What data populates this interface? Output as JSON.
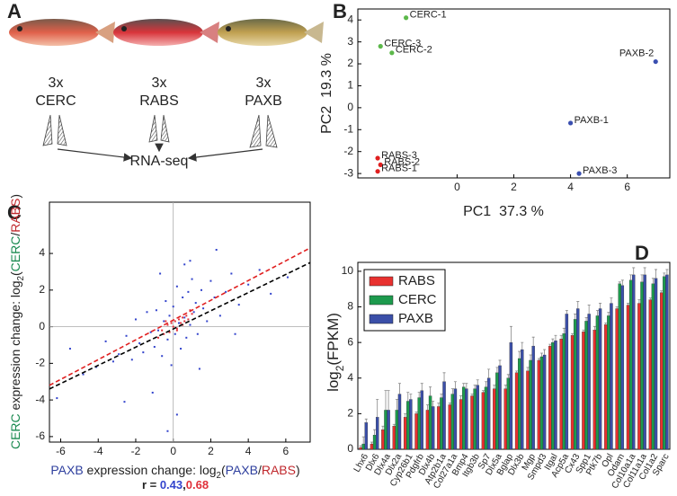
{
  "panel_a": {
    "letter": "A",
    "groups": [
      {
        "count": "3x",
        "name": "CERC",
        "color": "#1a8a50"
      },
      {
        "count": "3x",
        "name": "RABS",
        "color": "#c0282d"
      },
      {
        "count": "3x",
        "name": "PAXB",
        "color": "#2e3f9e"
      }
    ],
    "output": "RNA-seq"
  },
  "chart_data": [
    {
      "type": "scatter",
      "panel": "B",
      "xlabel": "PC1  37.3 %",
      "ylabel": "PC2  19.3 %",
      "xlim": [
        -3.5,
        7.5
      ],
      "ylim": [
        -3.2,
        4.5
      ],
      "xticks": [
        0,
        2,
        4,
        6
      ],
      "yticks": [
        -3,
        -2,
        -1,
        0,
        1,
        2,
        3,
        4
      ],
      "points": [
        {
          "label": "CERC-1",
          "x": -1.8,
          "y": 4.1,
          "color": "#5cb84a"
        },
        {
          "label": "CERC-3",
          "x": -2.7,
          "y": 2.8,
          "color": "#5cb84a"
        },
        {
          "label": "CERC-2",
          "x": -2.3,
          "y": 2.5,
          "color": "#5cb84a"
        },
        {
          "label": "PAXB-2",
          "x": 7.0,
          "y": 2.1,
          "color": "#3a4fb0"
        },
        {
          "label": "PAXB-1",
          "x": 4.0,
          "y": -0.7,
          "color": "#3a4fb0"
        },
        {
          "label": "PAXB-3",
          "x": 4.3,
          "y": -3.0,
          "color": "#3a4fb0"
        },
        {
          "label": "RABS-3",
          "x": -2.8,
          "y": -2.3,
          "color": "#e02020"
        },
        {
          "label": "RABS-2",
          "x": -2.7,
          "y": -2.6,
          "color": "#e02020"
        },
        {
          "label": "RABS-1",
          "x": -2.8,
          "y": -2.9,
          "color": "#e02020"
        }
      ]
    },
    {
      "type": "scatter-fit",
      "panel": "C",
      "xlim": [
        -6.6,
        7.3
      ],
      "ylim": [
        -6.3,
        6.8
      ],
      "xticks": [
        -6,
        -4,
        -2,
        0,
        2,
        4,
        6
      ],
      "yticks": [
        -6,
        -4,
        -2,
        0,
        2,
        4
      ],
      "series": [
        {
          "color": "#3344cc",
          "x": [
            -6.2,
            -5.5,
            -4.8,
            -4.1,
            -3.6,
            -3.2,
            -2.9,
            -2.5,
            -2.2,
            -2.0,
            -1.8,
            -1.6,
            -1.4,
            -1.2,
            -1.0,
            -0.9,
            -0.8,
            -0.6,
            -0.5,
            -0.4,
            -0.3,
            -0.2,
            -0.1,
            0.0,
            0.1,
            0.2,
            0.3,
            0.4,
            0.5,
            0.6,
            0.7,
            0.8,
            0.9,
            1.0,
            1.1,
            1.2,
            1.3,
            1.5,
            1.6,
            1.8,
            2.0,
            2.2,
            2.5,
            2.8,
            3.1,
            3.5,
            4.0,
            4.6,
            5.2,
            6.1,
            -1.1,
            -0.7,
            0.2,
            0.9,
            1.4,
            -2.6,
            2.3,
            -0.3,
            0.6,
            3.3
          ],
          "y": [
            -3.9,
            -1.2,
            -2.6,
            -2.2,
            -0.8,
            -1.9,
            -1.5,
            -0.5,
            -1.8,
            0.4,
            -0.9,
            -1.4,
            0.8,
            -0.3,
            -1.1,
            0.9,
            -0.2,
            -1.6,
            0.3,
            1.4,
            -0.7,
            0.6,
            -2.1,
            1.1,
            -0.4,
            2.2,
            0.2,
            -1.2,
            1.6,
            0.5,
            -0.6,
            1.9,
            0.1,
            2.6,
            0.8,
            1.3,
            -0.4,
            2.0,
            1.0,
            0.3,
            2.5,
            1.6,
            0.6,
            1.9,
            2.9,
            1.2,
            2.3,
            3.1,
            1.8,
            2.7,
            -3.6,
            2.9,
            -4.8,
            3.6,
            -2.3,
            -4.1,
            4.2,
            -5.7,
            3.4,
            -0.4
          ]
        },
        {
          "color": "#e0303a",
          "x": [
            -0.8,
            -0.6,
            -0.5,
            -0.3,
            -0.2,
            -0.1,
            0.0,
            0.1,
            0.2,
            0.3,
            0.4,
            0.5,
            0.6,
            0.7,
            0.8,
            1.0,
            -0.4,
            0.2,
            0.5,
            0.9
          ],
          "y": [
            -0.6,
            -0.2,
            -0.4,
            0.1,
            -0.3,
            0.2,
            0.0,
            0.3,
            -0.1,
            0.4,
            0.2,
            0.5,
            0.3,
            0.6,
            0.4,
            0.7,
            0.3,
            -0.2,
            0.1,
            0.9
          ]
        }
      ],
      "fits": [
        {
          "color": "#e02020",
          "x": [
            -6.6,
            7.3
          ],
          "y": [
            -3.2,
            4.3
          ]
        },
        {
          "color": "#000000",
          "x": [
            -6.6,
            7.3
          ],
          "y": [
            -3.4,
            3.5
          ]
        }
      ],
      "xlabel": {
        "parts": [
          {
            "text": "PAXB",
            "color": "#2e3f9e"
          },
          {
            "text": " expression change: log"
          },
          {
            "text": "2",
            "sub": true
          },
          {
            "text": "("
          },
          {
            "text": "PAXB",
            "color": "#2e3f9e"
          },
          {
            "text": "/"
          },
          {
            "text": "RABS",
            "color": "#c0282d"
          },
          {
            "text": ")"
          }
        ]
      },
      "ylabel": {
        "parts": [
          {
            "text": "CERC",
            "color": "#1a8a50"
          },
          {
            "text": " expression change: log"
          },
          {
            "text": "2",
            "sub": true
          },
          {
            "text": "("
          },
          {
            "text": "CERC",
            "color": "#1a8a50"
          },
          {
            "text": "/"
          },
          {
            "text": "RABS",
            "color": "#c0282d"
          },
          {
            "text": ")"
          }
        ]
      },
      "annotation": {
        "parts": [
          {
            "text": "r = "
          },
          {
            "text": "0.43",
            "color": "#3344cc"
          },
          {
            "text": ","
          },
          {
            "text": "0.68",
            "color": "#e0303a"
          }
        ]
      }
    },
    {
      "type": "bar",
      "panel": "D",
      "ylim": [
        0,
        10.5
      ],
      "yticks": [
        0,
        2,
        4,
        6,
        8,
        10
      ],
      "ylabel": {
        "parts": [
          {
            "text": "log"
          },
          {
            "text": "2",
            "sub": true
          },
          {
            "text": "(FPKM)"
          }
        ]
      },
      "categories": [
        "Lhx6",
        "Dlx6",
        "Dlx4a",
        "Dlx2a",
        "Cyp26b1",
        "Pdgfrb",
        "Dlx4b",
        "Atp2b1a",
        "Col27a1a",
        "Bmp4",
        "Itgb3b",
        "Sp7",
        "Dlx5a",
        "Bglap",
        "Dlx3b",
        "Mgp",
        "Smpd3",
        "Itgal",
        "Acp5a",
        "Cx43",
        "Spp1",
        "Ptk7b",
        "Opl",
        "Odam",
        "Col10a1a",
        "Col11a1a",
        "Col1a2",
        "Sparc"
      ],
      "series": [
        {
          "name": "RABS",
          "color": "#e8312f",
          "values": [
            0.1,
            0.3,
            1.1,
            1.3,
            1.8,
            2.0,
            2.2,
            2.4,
            2.5,
            2.8,
            3.0,
            3.2,
            3.4,
            3.4,
            4.3,
            4.4,
            5.0,
            5.8,
            6.2,
            6.4,
            6.6,
            6.7,
            7.0,
            7.9,
            8.1,
            8.2,
            8.4,
            8.8
          ],
          "errors": [
            0.1,
            0.1,
            0.2,
            0.1,
            0.2,
            0.1,
            0.3,
            0.2,
            0.1,
            0.2,
            0.1,
            0.1,
            0.2,
            0.2,
            0.1,
            0.2,
            0.1,
            0.1,
            0.2,
            0.1,
            0.1,
            0.2,
            0.1,
            0.1,
            0.1,
            0.2,
            0.1,
            0.1
          ]
        },
        {
          "name": "CERC",
          "color": "#1d9a4d",
          "values": [
            0.3,
            0.8,
            2.2,
            2.2,
            2.7,
            2.9,
            3.0,
            2.9,
            3.1,
            3.5,
            3.4,
            3.5,
            4.3,
            4.0,
            5.1,
            5.0,
            5.2,
            6.0,
            6.5,
            7.3,
            7.2,
            7.5,
            7.5,
            9.3,
            9.5,
            9.4,
            9.3,
            9.7
          ],
          "errors": [
            0.4,
            0.3,
            1.1,
            0.6,
            0.5,
            0.3,
            0.5,
            0.2,
            0.3,
            0.2,
            0.2,
            0.3,
            0.3,
            0.2,
            0.4,
            0.3,
            0.2,
            0.2,
            0.3,
            0.3,
            0.2,
            0.3,
            0.2,
            0.1,
            0.3,
            0.4,
            0.3,
            0.2
          ]
        },
        {
          "name": "PAXB",
          "color": "#3b4fa8",
          "values": [
            1.5,
            1.8,
            2.2,
            3.1,
            2.8,
            3.3,
            2.4,
            3.8,
            3.4,
            3.4,
            3.6,
            4.0,
            4.7,
            6.0,
            5.6,
            5.8,
            5.3,
            6.1,
            7.6,
            7.9,
            7.6,
            7.9,
            8.2,
            9.2,
            9.8,
            9.8,
            9.6,
            9.8
          ],
          "errors": [
            0.2,
            1.0,
            1.1,
            0.6,
            0.3,
            0.4,
            0.3,
            0.5,
            0.4,
            0.3,
            0.3,
            0.5,
            0.3,
            0.9,
            0.4,
            0.5,
            0.3,
            0.3,
            0.2,
            0.4,
            0.5,
            0.3,
            0.3,
            0.3,
            0.4,
            0.4,
            0.5,
            0.3
          ]
        }
      ],
      "legend": "upper-left"
    }
  ]
}
